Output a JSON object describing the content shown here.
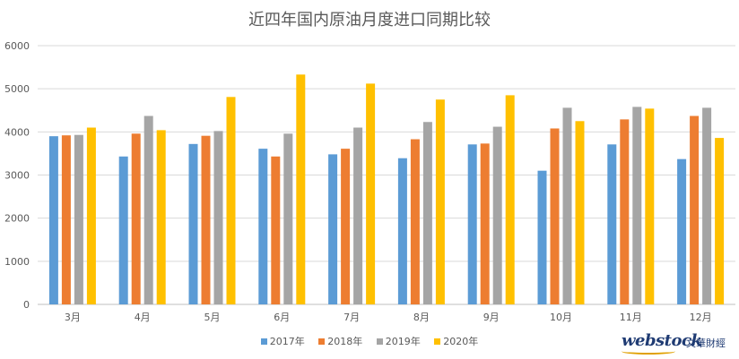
{
  "chart_data": {
    "type": "bar",
    "title": "近四年国内原油月度进口同期比较",
    "categories": [
      "3月",
      "4月",
      "5月",
      "6月",
      "7月",
      "8月",
      "9月",
      "10月",
      "11月",
      "12月"
    ],
    "series": [
      {
        "name": "2017年",
        "color": "#5b9bd5",
        "values": [
          3900,
          3430,
          3720,
          3610,
          3480,
          3390,
          3710,
          3100,
          3710,
          3370
        ]
      },
      {
        "name": "2018年",
        "color": "#ed7d31",
        "values": [
          3920,
          3960,
          3910,
          3430,
          3610,
          3830,
          3730,
          4080,
          4290,
          4370
        ]
      },
      {
        "name": "2019年",
        "color": "#a5a5a5",
        "values": [
          3930,
          4370,
          4020,
          3960,
          4100,
          4230,
          4120,
          4560,
          4580,
          4560
        ]
      },
      {
        "name": "2020年",
        "color": "#ffc000",
        "values": [
          4100,
          4040,
          4810,
          5330,
          5120,
          4750,
          4850,
          4250,
          4540,
          3860
        ]
      }
    ],
    "ylim": [
      0,
      6000
    ],
    "yticks": [
      0,
      1000,
      2000,
      3000,
      4000,
      5000,
      6000
    ],
    "grid": true,
    "legend_position": "bottom"
  },
  "watermark": {
    "brand": "webstock",
    "sub": "文華財經"
  }
}
